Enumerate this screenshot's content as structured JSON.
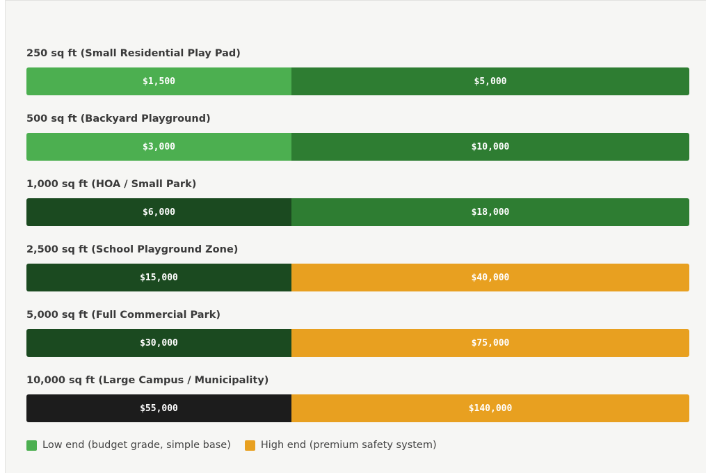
{
  "chart_data": {
    "type": "bar",
    "orientation": "horizontal",
    "stacked": true,
    "categories": [
      "250 sq ft (Small Residential Play Pad)",
      "500 sq ft (Backyard Playground)",
      "1,000 sq ft (HOA / Small Park)",
      "2,500 sq ft (School Playground Zone)",
      "5,000 sq ft (Full Commercial Park)",
      "10,000 sq ft (Large Campus / Municipality)"
    ],
    "series": [
      {
        "name": "Low end (budget grade, simple base)",
        "values": [
          1500,
          3000,
          6000,
          15000,
          30000,
          55000
        ],
        "labels": [
          "$1,500",
          "$3,000",
          "$6,000",
          "$15,000",
          "$30,000",
          "$55,000"
        ],
        "colors": [
          "#4caf50",
          "#4caf50",
          "#1b4a20",
          "#1b4a20",
          "#1b4a20",
          "#1c1c1c"
        ]
      },
      {
        "name": "High end (premium safety system)",
        "values": [
          5000,
          10000,
          18000,
          40000,
          75000,
          140000
        ],
        "labels": [
          "$5,000",
          "$10,000",
          "$18,000",
          "$40,000",
          "$75,000",
          "$140,000"
        ],
        "colors": [
          "#2e7d32",
          "#2e7d32",
          "#2e7d32",
          "#e8a020",
          "#e8a020",
          "#e8a020"
        ]
      }
    ],
    "legend": {
      "placement": "bottom-left",
      "items": [
        {
          "label": "Low end (budget grade, simple base)",
          "color": "#4caf50"
        },
        {
          "label": "High end (premium safety system)",
          "color": "#e8a020"
        }
      ]
    },
    "title": "",
    "xlabel": "",
    "ylabel": "",
    "grid": false
  }
}
